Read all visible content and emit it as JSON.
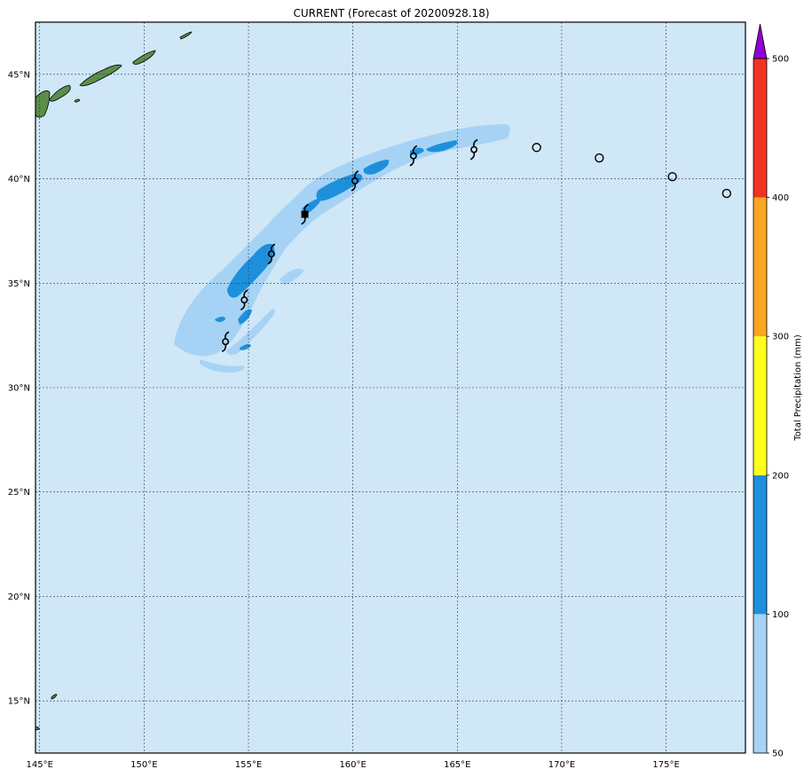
{
  "title": "CURRENT (Forecast of 20200928.18)",
  "colors": {
    "ocean": "#d0e7f7",
    "land": "#5a8f4a",
    "precip_50_100": "#a6d3f5",
    "precip_100_200": "#1e90db",
    "precip_200_300": "#ffff1e",
    "precip_300_400": "#fba620",
    "precip_400_500": "#f03423",
    "precip_500_plus": "#8f00d6"
  },
  "map": {
    "lon_range": [
      144.8,
      178.8
    ],
    "lat_range": [
      12.5,
      47.5
    ],
    "lon_ticks": [
      {
        "value": 145,
        "label": "145°E"
      },
      {
        "value": 150,
        "label": "150°E"
      },
      {
        "value": 155,
        "label": "155°E"
      },
      {
        "value": 160,
        "label": "160°E"
      },
      {
        "value": 165,
        "label": "165°E"
      },
      {
        "value": 170,
        "label": "170°E"
      },
      {
        "value": 175,
        "label": "175°E"
      }
    ],
    "lat_ticks": [
      {
        "value": 15,
        "label": "15°N"
      },
      {
        "value": 20,
        "label": "20°N"
      },
      {
        "value": 25,
        "label": "25°N"
      },
      {
        "value": 30,
        "label": "30°N"
      },
      {
        "value": 35,
        "label": "35°N"
      },
      {
        "value": 40,
        "label": "40°N"
      },
      {
        "value": 45,
        "label": "45°N"
      }
    ],
    "storm_track_symbols": [
      {
        "lon": 153.9,
        "lat": 32.2,
        "type": "tropical-cyclone"
      },
      {
        "lon": 154.8,
        "lat": 34.2,
        "type": "tropical-cyclone"
      },
      {
        "lon": 156.1,
        "lat": 36.4,
        "type": "tropical-cyclone"
      },
      {
        "lon": 157.7,
        "lat": 38.3,
        "type": "tropical-cyclone"
      },
      {
        "lon": 160.1,
        "lat": 39.9,
        "type": "tropical-cyclone"
      },
      {
        "lon": 162.9,
        "lat": 41.1,
        "type": "tropical-cyclone"
      },
      {
        "lon": 165.8,
        "lat": 41.4,
        "type": "tropical-cyclone"
      },
      {
        "lon": 168.8,
        "lat": 41.5,
        "type": "post-tropical"
      },
      {
        "lon": 171.8,
        "lat": 41.0,
        "type": "post-tropical"
      },
      {
        "lon": 175.3,
        "lat": 40.1,
        "type": "post-tropical"
      },
      {
        "lon": 177.9,
        "lat": 39.3,
        "type": "post-tropical"
      }
    ],
    "current_position": {
      "lon": 157.7,
      "lat": 38.3
    }
  },
  "colorbar": {
    "label": "Total Precipitation (mm)",
    "levels": [
      50,
      100,
      200,
      300,
      400,
      500
    ],
    "tick_labels": [
      "50",
      "100",
      "200",
      "300",
      "400",
      "500"
    ]
  }
}
